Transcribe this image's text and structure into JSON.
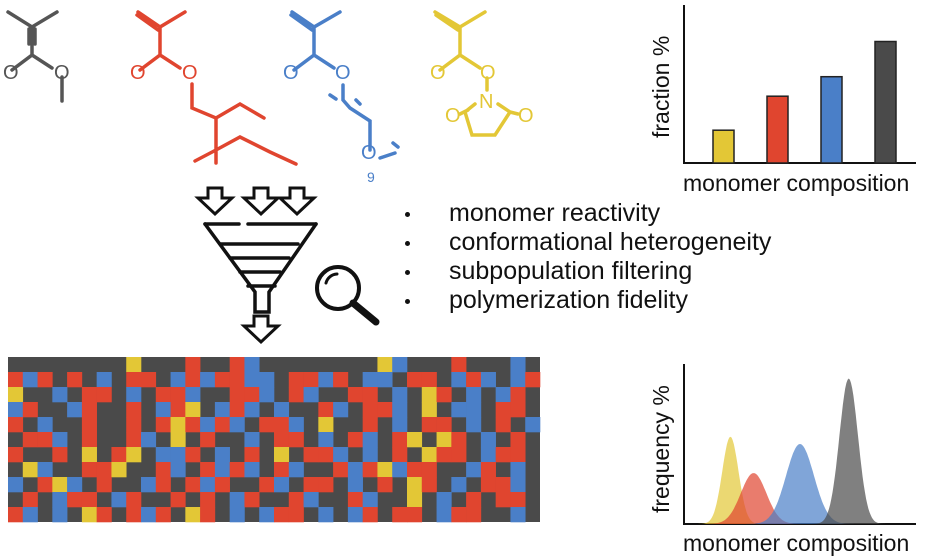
{
  "colors": {
    "gray": "#555555",
    "red": "#e0452f",
    "blue": "#4a7fc8",
    "yellow": "#e3c736",
    "dark": "#4a4a4a"
  },
  "structures": [
    {
      "name": "methyl methacrylate",
      "color": "gray",
      "labels": [
        "O",
        "O"
      ]
    },
    {
      "name": "2-ethylhexyl methacrylate",
      "color": "red",
      "labels": [
        "O",
        "O"
      ]
    },
    {
      "name": "oligo(ethylene glycol) methacrylate",
      "color": "blue",
      "labels": [
        "O",
        "O",
        "O"
      ],
      "subscript": "9"
    },
    {
      "name": "NHS methacrylate",
      "color": "yellow",
      "labels": [
        "O",
        "O",
        "N",
        "O",
        "O"
      ]
    }
  ],
  "bullets": [
    "monomer reactivity",
    "conformational heterogeneity",
    "subpopulation filtering",
    "polymerization fidelity"
  ],
  "icons": [
    "arrow-down-icon",
    "funnel-icon",
    "magnifier-icon"
  ],
  "top_chart_labels": {
    "ylabel": "fraction %",
    "xlabel": "monomer composition"
  },
  "bottom_chart_labels": {
    "ylabel": "frequency %",
    "xlabel": "monomer composition"
  },
  "chart_data": [
    {
      "type": "bar",
      "title": "",
      "categories": [
        "",
        "",
        "",
        ""
      ],
      "values": [
        0.27,
        0.55,
        0.71,
        1.0
      ],
      "colors": [
        "#e3c736",
        "#e0452f",
        "#4a7fc8",
        "#4a4a4a"
      ],
      "xlabel": "monomer composition",
      "ylabel": "fraction %",
      "ylim": [
        0,
        1.3
      ],
      "grid": false
    },
    {
      "type": "area",
      "title": "",
      "xlabel": "monomer composition",
      "ylabel": "frequency %",
      "ylim": [
        0,
        1.1
      ],
      "grid": false,
      "distributions": [
        {
          "color": "#e3c736",
          "center": 0.2,
          "width": 0.035,
          "height": 0.6
        },
        {
          "color": "#e0452f",
          "center": 0.3,
          "width": 0.055,
          "height": 0.35
        },
        {
          "color": "#4a7fc8",
          "center": 0.5,
          "width": 0.06,
          "height": 0.55
        },
        {
          "color": "#4a4a4a",
          "center": 0.71,
          "width": 0.04,
          "height": 1.0
        }
      ]
    }
  ],
  "sequence_grid": {
    "cols": 36,
    "legend": {
      "G": "dark",
      "R": "red",
      "B": "blue",
      "Y": "yellow"
    },
    "rows": [
      "GGGGGGGGYGGGRGGRBGGGGGGGGYBGGGRGGGBG",
      "RBRGRGBGRRGBRBRRBBGRRBRGBBGRRGBRBGBR",
      "YGGBGRRGBGRRBGGRRBGRBGGRRGBGYRGBGBRG",
      "BRGGBRGGRGBRYGBRBGBGGRBGRRBGYGBBGRRG",
      "RGBGGRGGRGRYRBRBGRRBGYGGRGBGRRGBGRGB",
      "GRRBGRGGRBGYGRGGBGRRGBGRBGRYGYRGBGRG",
      "RGGRGYGRYGBBRGBGRGYGRRBGBGRGYRRGBRRG",
      "GYBGGRRYGGRBGRBRBGRBGGRBRYBRRGGBRGBG",
      "BGRYBGRGGBRGRBRGGRBGRRGBGRGYRGBGRRBG",
      "GRGBRRGBRGGRGRGBRGGRBGGRBGGYGBGRGRRG",
      "RBGBGYRGRBRGYRGBGBRRGBGBRGRRGBRRGGBG"
    ]
  }
}
